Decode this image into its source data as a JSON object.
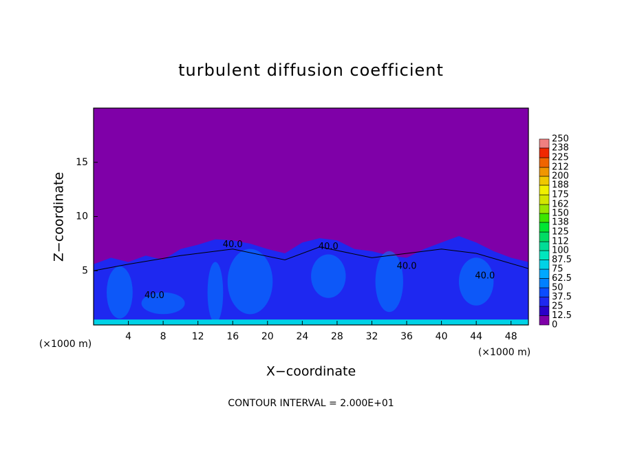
{
  "chart_data": {
    "type": "contour",
    "title": "turbulent diffusion coefficient",
    "xlabel": "X−coordinate",
    "ylabel": "Z−coordinate",
    "x_unit_left": "(×1000 m)",
    "x_unit_right": "(×1000 m)",
    "footer": "CONTOUR INTERVAL = 2.000E+01",
    "background_color": "#7f00a8",
    "xlim": [
      0,
      50
    ],
    "xticks": [
      4,
      8,
      12,
      16,
      20,
      24,
      28,
      32,
      36,
      40,
      44,
      48
    ],
    "ylim": [
      0,
      20
    ],
    "yticks": [
      5,
      10,
      15
    ],
    "contour_labels": [
      "40.0",
      "40.0",
      "40.0",
      "40.0",
      "40.0"
    ],
    "colorbar": {
      "levels": [
        0,
        12.5,
        25,
        37.5,
        50,
        62.5,
        75,
        87.5,
        100,
        112,
        125,
        138,
        150,
        162,
        175,
        188,
        200,
        212,
        225,
        238,
        250
      ],
      "colors": [
        "#7f00a8",
        "#2a00c8",
        "#1e28f0",
        "#0a4cff",
        "#0080ff",
        "#00a8ff",
        "#00d2e6",
        "#00e6be",
        "#00dc96",
        "#00dc64",
        "#00e632",
        "#3ce600",
        "#96e600",
        "#d2e600",
        "#f0f000",
        "#f0c800",
        "#f09600",
        "#f06400",
        "#f02800",
        "#f08080"
      ]
    }
  }
}
